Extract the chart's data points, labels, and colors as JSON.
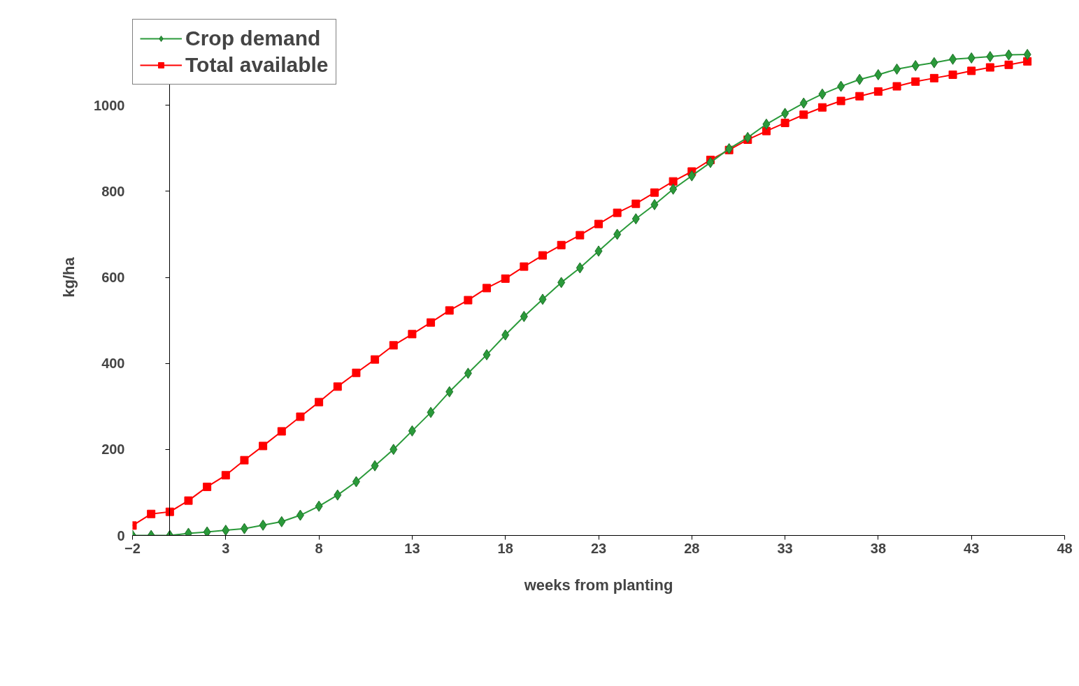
{
  "chart_data": {
    "type": "line",
    "xlabel": "weeks from planting",
    "ylabel": "kg/ha",
    "x": [
      -2,
      -1,
      0,
      1,
      2,
      3,
      4,
      5,
      6,
      7,
      8,
      9,
      10,
      11,
      12,
      13,
      14,
      15,
      16,
      17,
      18,
      19,
      20,
      21,
      22,
      23,
      24,
      25,
      26,
      27,
      28,
      29,
      30,
      31,
      32,
      33,
      34,
      35,
      36,
      37,
      38,
      39,
      40,
      41,
      42,
      43,
      44,
      45,
      46
    ],
    "xlim": [
      -2,
      48
    ],
    "xticks": [
      -2,
      3,
      8,
      13,
      18,
      23,
      28,
      33,
      38,
      43,
      48
    ],
    "ylim": [
      0,
      1200
    ],
    "yticks": [
      0,
      200,
      400,
      600,
      800,
      1000
    ],
    "legend": "top left",
    "line_style": "solid",
    "series": [
      {
        "name": "Crop demand",
        "color": "#2a9a3a",
        "marker": "diamond",
        "values": [
          0,
          0,
          0,
          5,
          8,
          12,
          16,
          24,
          32,
          47,
          68,
          94,
          125,
          162,
          200,
          243,
          286,
          334,
          377,
          420,
          466,
          509,
          549,
          588,
          622,
          661,
          700,
          736,
          769,
          805,
          836,
          867,
          899,
          925,
          956,
          981,
          1005,
          1026,
          1044,
          1060,
          1071,
          1084,
          1092,
          1099,
          1107,
          1110,
          1113,
          1117,
          1118
        ]
      },
      {
        "name": "Total available",
        "color": "#ff0000",
        "marker": "square",
        "values": [
          23,
          50,
          55,
          81,
          113,
          140,
          175,
          208,
          242,
          276,
          310,
          346,
          378,
          409,
          442,
          468,
          495,
          523,
          547,
          575,
          597,
          625,
          651,
          675,
          698,
          724,
          750,
          771,
          797,
          823,
          846,
          873,
          896,
          920,
          940,
          959,
          978,
          995,
          1010,
          1021,
          1032,
          1044,
          1055,
          1063,
          1071,
          1080,
          1088,
          1094,
          1102
        ]
      }
    ]
  }
}
